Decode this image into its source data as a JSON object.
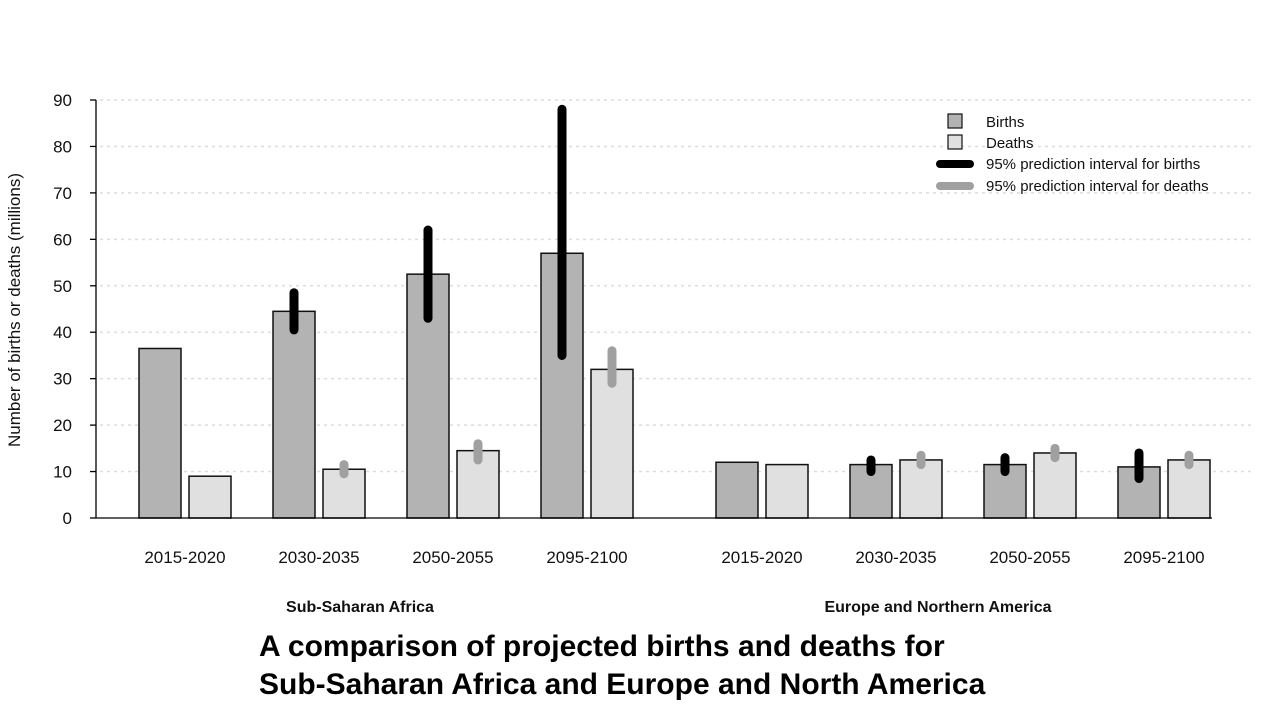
{
  "chart_data": {
    "type": "bar",
    "ylabel": "Number of births or deaths (millions)",
    "ylim": [
      0,
      90
    ],
    "yticks": [
      0,
      10,
      20,
      30,
      40,
      50,
      60,
      70,
      80,
      90
    ],
    "grid": true,
    "legend_position": "top-right",
    "legend": {
      "births": "Births",
      "deaths": "Deaths",
      "births_interval": "95% prediction interval for births",
      "deaths_interval": "95% prediction interval for deaths"
    },
    "groups": [
      {
        "region": "Sub-Saharan Africa",
        "categories": [
          "2015-2020",
          "2030-2035",
          "2050-2055",
          "2095-2100"
        ],
        "births": [
          36.5,
          44.5,
          52.5,
          57
        ],
        "deaths": [
          9,
          10.5,
          14.5,
          32
        ],
        "births_interval": [
          null,
          [
            40.5,
            48.5
          ],
          [
            43,
            62
          ],
          [
            35,
            88
          ]
        ],
        "deaths_interval": [
          null,
          [
            9.5,
            11.5
          ],
          [
            12.5,
            16
          ],
          [
            29,
            36
          ]
        ]
      },
      {
        "region": "Europe and Northern America",
        "categories": [
          "2015-2020",
          "2030-2035",
          "2050-2055",
          "2095-2100"
        ],
        "births": [
          12,
          11.5,
          11.5,
          11
        ],
        "deaths": [
          11.5,
          12.5,
          14,
          12.5
        ],
        "births_interval": [
          null,
          [
            10,
            12.5
          ],
          [
            10,
            13
          ],
          [
            8.5,
            14
          ]
        ],
        "deaths_interval": [
          null,
          [
            11.5,
            13.5
          ],
          [
            13,
            15
          ],
          [
            11.5,
            13.5
          ]
        ]
      }
    ],
    "colors": {
      "births_fill": "#b3b3b3",
      "deaths_fill": "#e0e0e0",
      "births_interval": "#000000",
      "deaths_interval": "#a0a0a0",
      "bar_stroke": "#111111",
      "grid": "#dcdcdc"
    }
  },
  "caption": {
    "line1": "A comparison of projected births and deaths for",
    "line2": "Sub-Saharan Africa and Europe and North America"
  }
}
